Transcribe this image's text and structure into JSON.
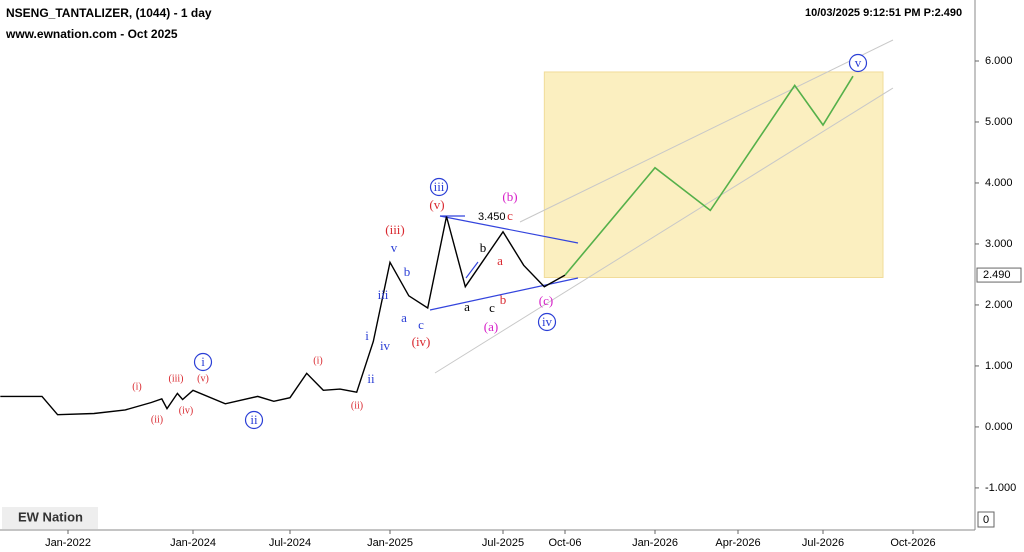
{
  "chart_data": {
    "type": "line",
    "title": "NSENG_TANTALIZER, (1044) - 1 day",
    "subtitle": "www.ewnation.com  - Oct 2025",
    "info": "10/03/2025 9:12:51 PM  P:2.490",
    "logo": "EW Nation",
    "corner_label": "0",
    "last_price": {
      "value": 2.49,
      "label": "2.490"
    },
    "ylim": [
      -1.69,
      7.0
    ],
    "yticks": [
      {
        "value": -1,
        "label": "-1.000"
      },
      {
        "value": 0,
        "label": "0.000"
      },
      {
        "value": 1,
        "label": "1.000"
      },
      {
        "value": 2,
        "label": "2.000"
      },
      {
        "value": 3,
        "label": "3.000"
      },
      {
        "value": 4,
        "label": "4.000"
      },
      {
        "value": 5,
        "label": "5.000"
      },
      {
        "value": 6,
        "label": "6.000"
      }
    ],
    "xticks": [
      {
        "value": "2022-01",
        "label": "Jan-2022"
      },
      {
        "value": "2024-01",
        "label": "Jan-2024"
      },
      {
        "value": "2024-07",
        "label": "Jul-2024"
      },
      {
        "value": "2025-01",
        "label": "Jan-2025"
      },
      {
        "value": "2025-07",
        "label": "Jul-2025"
      },
      {
        "value": "2025-10",
        "label": "Oct-06"
      },
      {
        "value": "2026-01",
        "label": "Jan-2026"
      },
      {
        "value": "2026-04",
        "label": "Apr-2026"
      },
      {
        "value": "2026-07",
        "label": "Jul-2026"
      },
      {
        "value": "2026-10",
        "label": "Oct-2026"
      }
    ],
    "target_zone": {
      "x": [
        "2025-09",
        "2026-09"
      ],
      "y": [
        2.45,
        5.82
      ],
      "color": "#fbefc0"
    },
    "series": [
      {
        "name": "Price",
        "color": "#000000",
        "x": [
          "2020-12",
          "2021-08",
          "2021-11",
          "2022-06",
          "2022-12",
          "2023-05",
          "2023-07",
          "2023-08",
          "2023-10",
          "2023-11",
          "2024-01",
          "2024-03",
          "2024-05",
          "2024-06",
          "2024-07",
          "2024-08",
          "2024-09",
          "2024-10",
          "2024-11",
          "2024-12",
          "2025-01",
          "2025-02",
          "2025-03",
          "2025-04",
          "2025-05",
          "2025-06",
          "2025-07",
          "2025-08",
          "2025-09",
          "2025-10"
        ],
        "values": [
          0.5,
          0.5,
          0.2,
          0.22,
          0.28,
          0.4,
          0.46,
          0.3,
          0.55,
          0.45,
          0.6,
          0.38,
          0.5,
          0.42,
          0.48,
          0.88,
          0.6,
          0.62,
          0.57,
          1.4,
          2.7,
          2.15,
          1.95,
          3.45,
          2.3,
          2.75,
          3.2,
          2.65,
          2.3,
          2.49
        ]
      },
      {
        "name": "Projection",
        "color": "#55b04a",
        "x": [
          "2025-10",
          "2026-01",
          "2026-03",
          "2026-06",
          "2026-07",
          "2026-08"
        ],
        "values": [
          2.49,
          4.25,
          3.55,
          5.6,
          4.95,
          5.75
        ]
      }
    ],
    "annotations": [
      {
        "text": "(i)",
        "color": "#d9282f"
      },
      {
        "text": "(ii)",
        "color": "#d9282f"
      },
      {
        "text": "(iii)",
        "color": "#d9282f"
      },
      {
        "text": "(iv)",
        "color": "#d9282f"
      },
      {
        "text": "(v)",
        "color": "#d9282f"
      },
      {
        "text": "i",
        "color": "#2b3fd6",
        "circled": true
      },
      {
        "text": "ii",
        "color": "#2b3fd6",
        "circled": true
      },
      {
        "text": "(i)",
        "color": "#d9282f"
      },
      {
        "text": "(ii)",
        "color": "#d9282f"
      },
      {
        "text": "i",
        "color": "#2b3fd6"
      },
      {
        "text": "ii",
        "color": "#2b3fd6"
      },
      {
        "text": "iii",
        "color": "#2b3fd6"
      },
      {
        "text": "iv",
        "color": "#2b3fd6"
      },
      {
        "text": "v",
        "color": "#2b3fd6"
      },
      {
        "text": "a",
        "color": "#2b3fd6"
      },
      {
        "text": "b",
        "color": "#2b3fd6"
      },
      {
        "text": "c",
        "color": "#2b3fd6"
      },
      {
        "text": "(iii)",
        "color": "#d9282f"
      },
      {
        "text": "(iv)",
        "color": "#d9282f"
      },
      {
        "text": "(v)",
        "color": "#d9282f"
      },
      {
        "text": "iii",
        "color": "#2b3fd6",
        "circled": true
      },
      {
        "text": "3.450",
        "color": "#000000"
      },
      {
        "text": "b",
        "color": "#000000"
      },
      {
        "text": "a",
        "color": "#000000"
      },
      {
        "text": "c",
        "color": "#000000"
      },
      {
        "text": "a",
        "color": "#d9282f"
      },
      {
        "text": "b",
        "color": "#d9282f"
      },
      {
        "text": "c",
        "color": "#d9282f"
      },
      {
        "text": "(b)",
        "color": "#d61fc8"
      },
      {
        "text": "(a)",
        "color": "#d61fc8"
      },
      {
        "text": "(c)",
        "color": "#d61fc8"
      },
      {
        "text": "iv",
        "color": "#2b3fd6",
        "circled": true
      },
      {
        "text": "v",
        "color": "#2b3fd6",
        "circled": true
      }
    ]
  }
}
